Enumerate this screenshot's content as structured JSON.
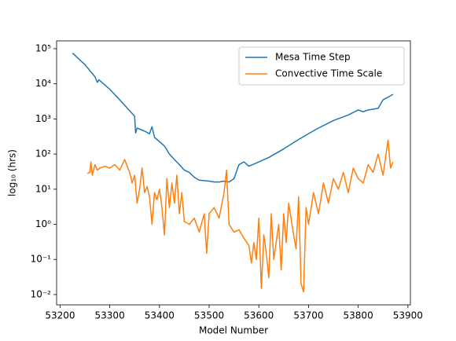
{
  "chart_data": {
    "type": "line",
    "xlabel": "Model Number",
    "ylabel": "log₁₀ (hrs)",
    "log_y": true,
    "legend": "upper right",
    "xlim": [
      53193,
      53905
    ],
    "ylim": [
      0.0051,
      167000
    ],
    "xticks": [
      53200,
      53300,
      53400,
      53500,
      53600,
      53700,
      53800,
      53900
    ],
    "yticks": [
      {
        "value": 0.01,
        "label": "10⁻²"
      },
      {
        "value": 0.1,
        "label": "10⁻¹"
      },
      {
        "value": 1,
        "label": "10⁰"
      },
      {
        "value": 10,
        "label": "10¹"
      },
      {
        "value": 100,
        "label": "10²"
      },
      {
        "value": 1000,
        "label": "10³"
      },
      {
        "value": 10000,
        "label": "10⁴"
      },
      {
        "value": 100000,
        "label": "10⁵"
      }
    ],
    "series": [
      {
        "name": "Mesa Time Step",
        "color": "#1f77b4",
        "x": [
          53225,
          53250,
          53270,
          53275,
          53278,
          53300,
          53320,
          53350,
          53352,
          53355,
          53370,
          53380,
          53385,
          53390,
          53410,
          53420,
          53430,
          53440,
          53450,
          53460,
          53470,
          53480,
          53500,
          53510,
          53520,
          53530,
          53540,
          53550,
          53560,
          53570,
          53580,
          53600,
          53620,
          53650,
          53680,
          53700,
          53720,
          53750,
          53780,
          53800,
          53810,
          53820,
          53840,
          53850,
          53870
        ],
        "values": [
          75000,
          35000,
          16000,
          11000,
          13000,
          7000,
          3500,
          1200,
          400,
          550,
          450,
          380,
          600,
          300,
          170,
          100,
          70,
          50,
          35,
          30,
          22,
          18,
          17,
          16,
          16,
          17,
          16,
          20,
          50,
          60,
          45,
          60,
          80,
          140,
          260,
          380,
          550,
          900,
          1300,
          1800,
          1600,
          1800,
          2000,
          3500,
          5000
        ]
      },
      {
        "name": "Convective Time Scale",
        "color": "#ff7f0e",
        "x": [
          53255,
          53260,
          53262,
          53265,
          53270,
          53275,
          53280,
          53290,
          53300,
          53310,
          53320,
          53330,
          53340,
          53345,
          53350,
          53355,
          53360,
          53365,
          53370,
          53375,
          53380,
          53385,
          53390,
          53395,
          53400,
          53405,
          53410,
          53415,
          53420,
          53425,
          53430,
          53435,
          53440,
          53445,
          53450,
          53460,
          53470,
          53480,
          53490,
          53495,
          53500,
          53510,
          53520,
          53530,
          53535,
          53540,
          53550,
          53560,
          53570,
          53580,
          53585,
          53590,
          53595,
          53600,
          53605,
          53610,
          53615,
          53620,
          53625,
          53630,
          53640,
          53645,
          53650,
          53655,
          53660,
          53670,
          53675,
          53680,
          53685,
          53690,
          53695,
          53700,
          53710,
          53720,
          53730,
          53740,
          53750,
          53760,
          53770,
          53780,
          53790,
          53800,
          53810,
          53820,
          53830,
          53840,
          53850,
          53860,
          53865,
          53870
        ],
        "values": [
          28,
          30,
          60,
          25,
          50,
          35,
          40,
          45,
          40,
          50,
          35,
          70,
          30,
          15,
          25,
          4,
          10,
          40,
          8,
          12,
          6,
          1,
          8,
          5,
          10,
          3,
          0.5,
          20,
          3,
          15,
          4,
          25,
          2,
          8,
          1.2,
          1,
          1.5,
          0.6,
          2,
          0.15,
          2,
          3,
          1.5,
          8,
          35,
          1,
          0.6,
          0.7,
          0.4,
          0.25,
          0.08,
          0.3,
          0.1,
          1.5,
          0.015,
          0.5,
          0.15,
          0.03,
          2,
          0.1,
          1,
          0.05,
          2,
          0.3,
          4,
          0.5,
          0.2,
          6,
          0.02,
          0.012,
          3,
          1,
          8,
          2,
          15,
          4,
          20,
          10,
          30,
          8,
          40,
          20,
          15,
          50,
          30,
          100,
          25,
          250,
          40,
          60
        ]
      }
    ]
  }
}
